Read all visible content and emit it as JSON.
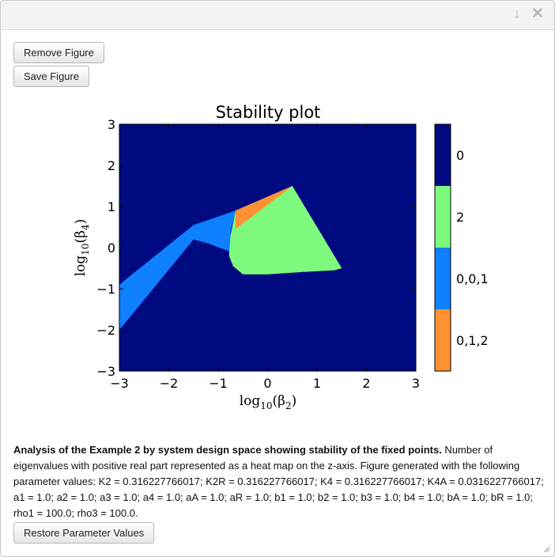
{
  "window": {
    "collapse_icon": "arrow-down-icon",
    "close_icon": "close-icon"
  },
  "buttons": {
    "remove_label": "Remove Figure",
    "save_label": "Save Figure",
    "restore_label": "Restore Parameter Values"
  },
  "chart_data": {
    "type": "heatmap",
    "title": "Stability plot",
    "xlabel_main": "log",
    "xlabel_sub": "10",
    "xlabel_arg": "(β",
    "xlabel_argsub": "2",
    "xlabel_close": ")",
    "ylabel_main": "log",
    "ylabel_sub": "10",
    "ylabel_arg": "(β",
    "ylabel_argsub": "4",
    "ylabel_close": ")",
    "xlim": [
      -3,
      3
    ],
    "ylim": [
      -3,
      3
    ],
    "xticks": [
      "−3",
      "−2",
      "−1",
      "0",
      "1",
      "2",
      "3"
    ],
    "yticks": [
      "−3",
      "−2",
      "−1",
      "0",
      "1",
      "2",
      "3"
    ],
    "background_value": "0",
    "regions": [
      {
        "label": "0,0,1",
        "color": "#0f80ff",
        "polygon": [
          [
            -3,
            -2
          ],
          [
            -3,
            -0.9
          ],
          [
            -1.5,
            0.55
          ],
          [
            -0.65,
            0.9
          ],
          [
            -0.75,
            0.4
          ],
          [
            -0.75,
            -0.1
          ],
          [
            -1.2,
            0.1
          ],
          [
            -1.5,
            0.2
          ]
        ]
      },
      {
        "label": "2",
        "color": "#7dfa7d",
        "polygon": [
          [
            -0.65,
            0.9
          ],
          [
            0.5,
            1.5
          ],
          [
            1.5,
            -0.5
          ],
          [
            1.35,
            -0.55
          ],
          [
            0.6,
            -0.6
          ],
          [
            0.0,
            -0.65
          ],
          [
            -0.5,
            -0.65
          ],
          [
            -0.7,
            -0.45
          ],
          [
            -0.78,
            -0.2
          ],
          [
            -0.75,
            0.3
          ]
        ]
      },
      {
        "label": "0,1,2",
        "color": "#ff9133",
        "polygon": [
          [
            -0.65,
            0.9
          ],
          [
            0.5,
            1.5
          ],
          [
            -0.65,
            0.45
          ]
        ]
      }
    ],
    "colorbar": [
      {
        "label": "0",
        "color": "#000a80"
      },
      {
        "label": "2",
        "color": "#7dfa7d"
      },
      {
        "label": "0,0,1",
        "color": "#0f80ff"
      },
      {
        "label": "0,1,2",
        "color": "#ff9133"
      }
    ]
  },
  "caption": {
    "bold": "Analysis of the Example 2 by system design space showing stability of the fixed points.",
    "text": " Number of eigenvalues with positive real part represented as a heat map on the z-axis. Figure generated with the following parameter values: K2 = 0.316227766017; K2R = 0.316227766017; K4 = 0.316227766017; K4A = 0.0316227766017; a1 = 1.0; a2 = 1.0; a3 = 1.0; a4 = 1.0; aA = 1.0; aR = 1.0; b1 = 1.0; b2 = 1.0; b3 = 1.0; b4 = 1.0; bA = 1.0; bR = 1.0; rho1 = 100.0; rho3 = 100.0."
  }
}
